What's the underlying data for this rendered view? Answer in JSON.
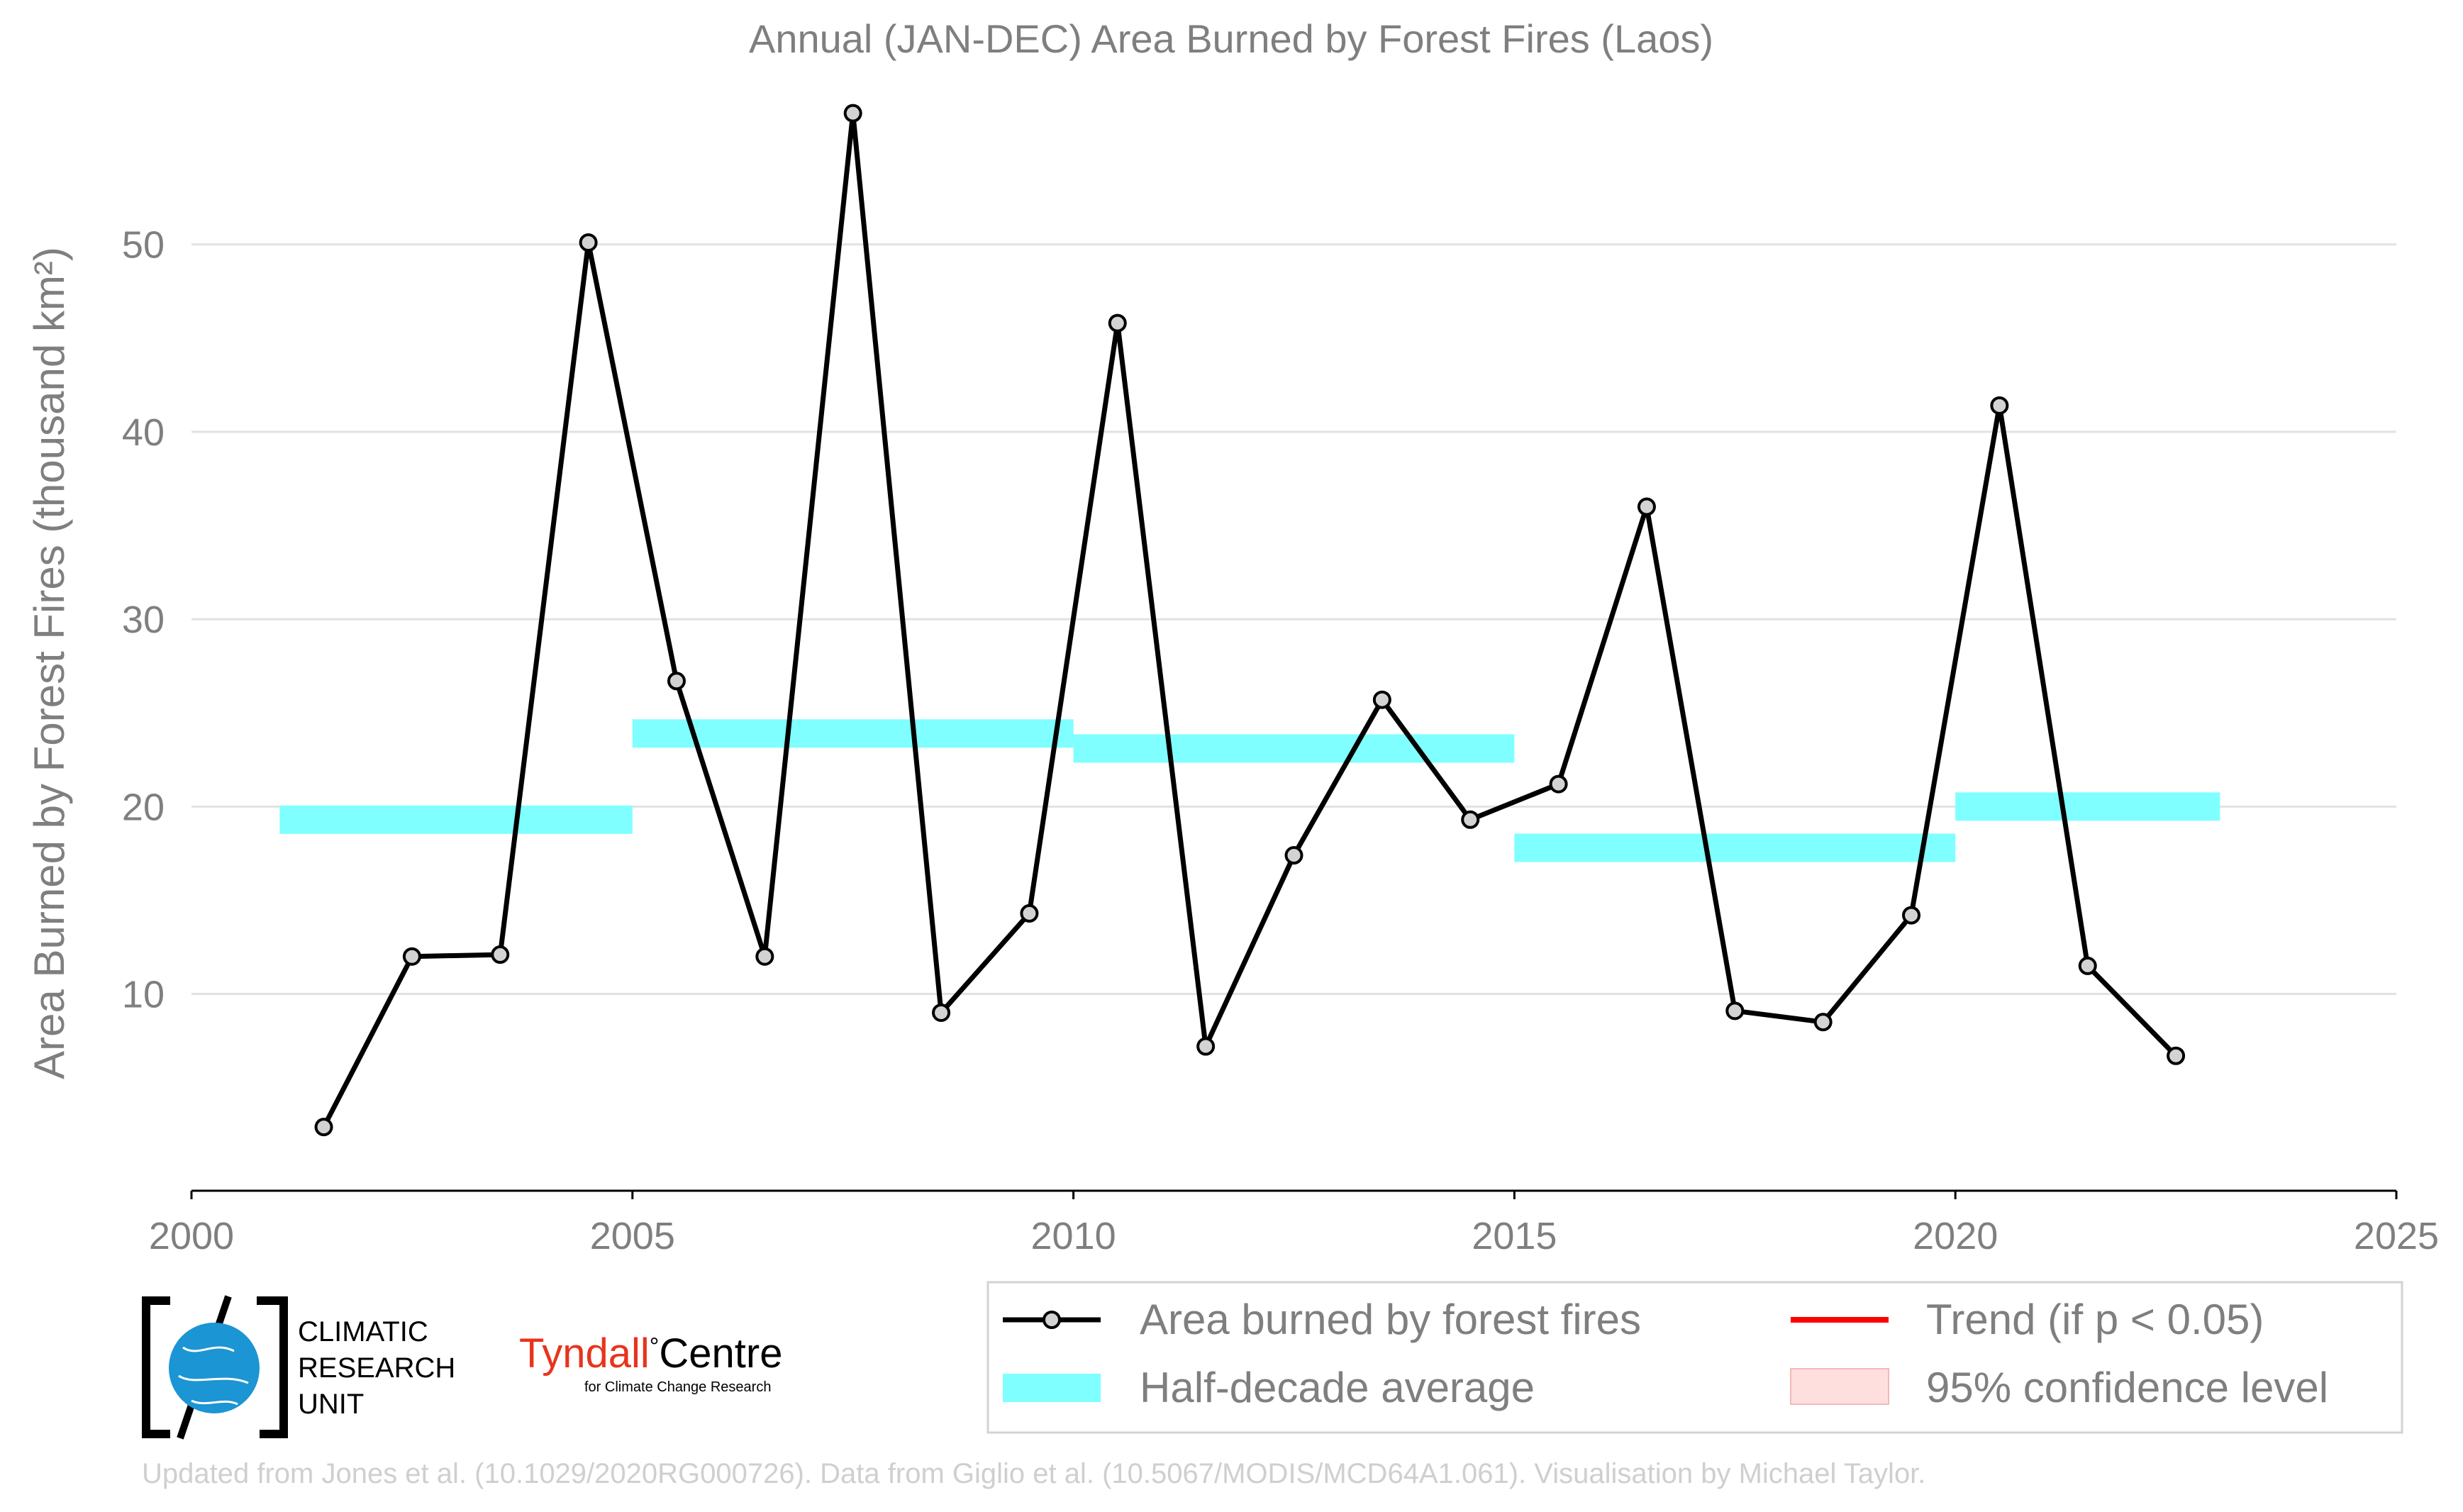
{
  "chart_data": {
    "type": "line",
    "title": "Annual (JAN-DEC) Area Burned by Forest Fires (Laos)",
    "xlabel": "",
    "ylabel": "Area Burned by Forest Fires (thousand km²)",
    "xlim": [
      2000,
      2025
    ],
    "ylim": [
      -0.5,
      58.5
    ],
    "xticks": [
      2000,
      2005,
      2010,
      2015,
      2020,
      2025
    ],
    "yticks": [
      10,
      20,
      30,
      40,
      50
    ],
    "grid": "horizontal",
    "series": [
      {
        "name": "Area burned by forest fires",
        "color": "#000000",
        "marker_fill": "#d3d3d3",
        "x": [
          2001.5,
          2002.5,
          2003.5,
          2004.5,
          2005.5,
          2006.5,
          2007.5,
          2008.5,
          2009.5,
          2010.5,
          2011.5,
          2012.5,
          2013.5,
          2014.5,
          2015.5,
          2016.5,
          2017.5,
          2018.5,
          2019.5,
          2020.5,
          2021.5,
          2022.5
        ],
        "y": [
          2.9,
          12.0,
          12.1,
          50.1,
          26.7,
          12.0,
          57.0,
          9.0,
          14.3,
          45.8,
          7.2,
          17.4,
          25.7,
          19.3,
          21.2,
          36.0,
          9.1,
          8.5,
          14.2,
          41.4,
          11.5,
          6.7
        ]
      },
      {
        "name": "Half-decade average",
        "color": "#7fffff",
        "segments": [
          {
            "x0": 2001,
            "x1": 2005,
            "y": 19.3
          },
          {
            "x0": 2005,
            "x1": 2010,
            "y": 23.9
          },
          {
            "x0": 2010,
            "x1": 2015,
            "y": 23.1
          },
          {
            "x0": 2015,
            "x1": 2020,
            "y": 17.8
          },
          {
            "x0": 2020,
            "x1": 2023,
            "y": 20.0
          }
        ]
      }
    ],
    "legend": {
      "placement": "bottom-right",
      "items": [
        {
          "label": "Area burned by forest fires",
          "kind": "line-marker",
          "color": "#000000"
        },
        {
          "label": "Trend (if p < 0.05)",
          "kind": "line",
          "color": "#ff0000"
        },
        {
          "label": "Half-decade average",
          "kind": "band",
          "color": "#7fffff"
        },
        {
          "label": "95% confidence level",
          "kind": "patch",
          "color": "#ffdede"
        }
      ]
    }
  },
  "logos": {
    "cru": [
      "CLIMATIC",
      "RESEARCH",
      "UNIT"
    ],
    "tyndall_main": "Tyndall",
    "tyndall_degree": "°",
    "tyndall_centre": "Centre",
    "tyndall_sub": "for Climate Change Research"
  },
  "footer": "Updated from Jones et al. (10.1029/2020RG000726). Data from Giglio et al. (10.5067/MODIS/MCD64A1.061). Visualisation by Michael Taylor."
}
